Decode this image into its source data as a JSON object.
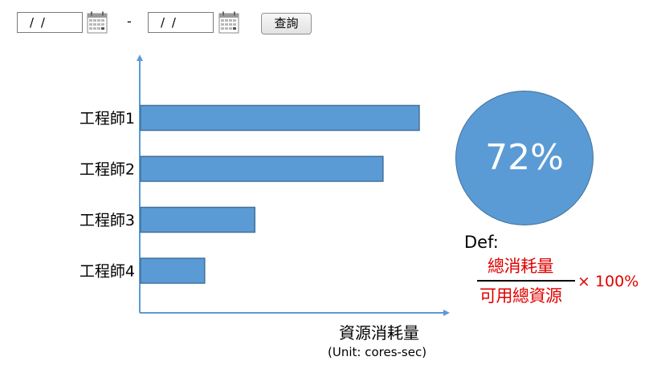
{
  "filters": {
    "start_date": "/ /",
    "end_date": "/ /",
    "separator": "-",
    "query_label": "查詢",
    "calendar_icon": "calendar-icon"
  },
  "summary": {
    "percent_label": "72%",
    "percent_value": 72,
    "circle_color": "#5b9bd5"
  },
  "definition": {
    "label": "Def:",
    "numerator": "總消耗量",
    "denominator": "可用總資源",
    "multiplier": "× 100%",
    "color": "#e00000"
  },
  "chart_data": {
    "type": "bar",
    "orientation": "horizontal",
    "categories": [
      "工程師1",
      "工程師2",
      "工程師3",
      "工程師4"
    ],
    "values": [
      100,
      87,
      41,
      23
    ],
    "xlabel": "資源消耗量",
    "xunit": "(Unit: cores-sec)",
    "ylabel": "",
    "grid": false,
    "bar_color": "#5b9bd5",
    "bar_border": "#41719c",
    "axis_color": "#5b9bd5"
  }
}
